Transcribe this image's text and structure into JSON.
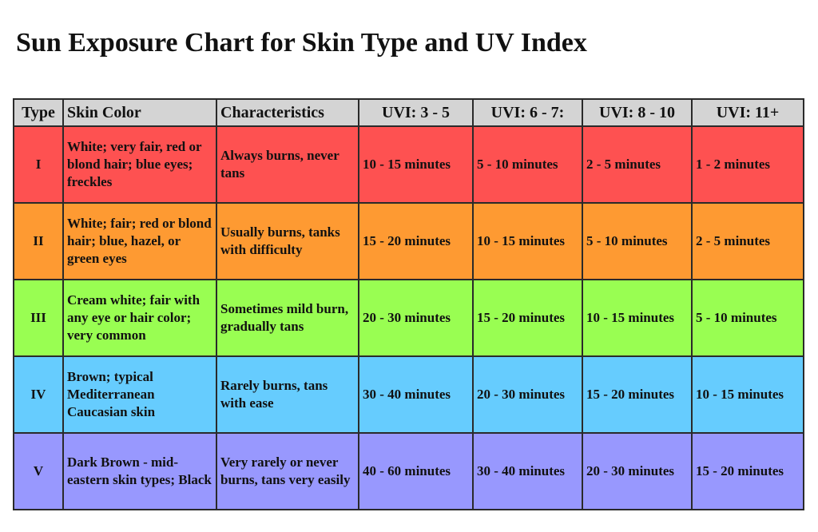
{
  "title": "Sun Exposure Chart for Skin Type and UV Index",
  "headers": {
    "type": "Type",
    "skin_color": "Skin Color",
    "characteristics": "Characteristics",
    "uvi": [
      "UVI: 3 - 5",
      "UVI: 6 - 7:",
      "UVI: 8 - 10",
      "UVI: 11+"
    ]
  },
  "row_colors": [
    "#fe5151",
    "#fe9a32",
    "#99fe52",
    "#66ccfe",
    "#9898fe"
  ],
  "header_color": "#d4d4d4",
  "chart_data": {
    "type": "table",
    "title": "Sun Exposure Chart for Skin Type and UV Index",
    "columns": [
      "Type",
      "Skin Color",
      "Characteristics",
      "UVI: 3 - 5",
      "UVI: 6 - 7:",
      "UVI: 8 - 10",
      "UVI: 11+"
    ],
    "rows": [
      {
        "type": "I",
        "skin_color": "White; very fair, red or blond hair; blue eyes; freckles",
        "characteristics": "Always burns, never tans",
        "times": [
          "10 - 15 minutes",
          "5 - 10 minutes",
          "2 - 5 minutes",
          "1 - 2 minutes"
        ]
      },
      {
        "type": "II",
        "skin_color": "White; fair; red or blond hair; blue, hazel, or green eyes",
        "characteristics": "Usually burns, tanks with difficulty",
        "times": [
          "15 - 20 minutes",
          "10 - 15 minutes",
          "5 - 10 minutes",
          "2 - 5 minutes"
        ]
      },
      {
        "type": "III",
        "skin_color": "Cream white; fair with any eye or hair color; very common",
        "characteristics": "Sometimes mild burn, gradually tans",
        "times": [
          "20 - 30 minutes",
          "15 - 20 minutes",
          "10 - 15 minutes",
          "5 - 10 minutes"
        ]
      },
      {
        "type": "IV",
        "skin_color": "Brown; typical Mediterranean Caucasian skin",
        "characteristics": "Rarely burns, tans with ease",
        "times": [
          "30 - 40 minutes",
          "20 - 30 minutes",
          "15 - 20 minutes",
          "10 - 15 minutes"
        ]
      },
      {
        "type": "V",
        "skin_color": "Dark Brown - mid-eastern skin types; Black",
        "characteristics": "Very rarely or never burns, tans very easily",
        "times": [
          "40 - 60 minutes",
          "30 - 40 minutes",
          "20 - 30 minutes",
          "15 - 20 minutes"
        ]
      }
    ]
  }
}
